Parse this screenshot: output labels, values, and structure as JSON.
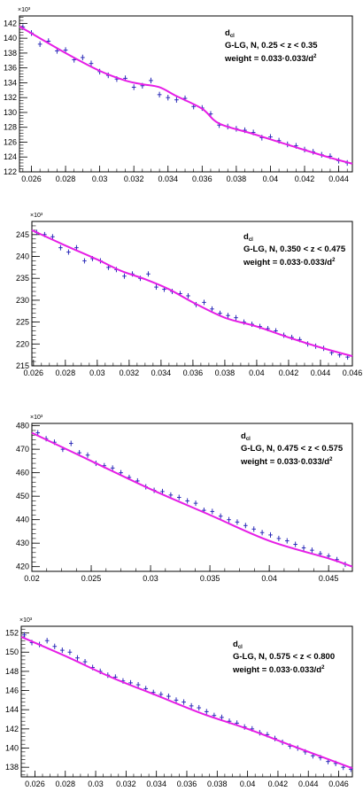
{
  "chart_data": [
    {
      "type": "line",
      "xlim": [
        0.0253,
        0.0448
      ],
      "ylim": [
        122,
        143
      ],
      "exponent_label": "×10³",
      "x_ticks": [
        0.026,
        0.028,
        0.03,
        0.032,
        0.034,
        0.036,
        0.038,
        0.04,
        0.042,
        0.044
      ],
      "x_tick_labels": [
        "0.026",
        "0.028",
        "0.03",
        "0.032",
        "0.034",
        "0.036",
        "0.038",
        "0.04",
        "0.042",
        "0.044"
      ],
      "y_ticks": [
        122,
        124,
        126,
        128,
        130,
        132,
        134,
        136,
        138,
        140,
        142
      ],
      "y_tick_labels": [
        "122",
        "124",
        "126",
        "128",
        "130",
        "132",
        "134",
        "136",
        "138",
        "140",
        "142"
      ],
      "legend": {
        "title": "d",
        "subscript": "cl",
        "line1": "G-LG, N, 0.25 < z < 0.35",
        "line2": "weight = 0.033·0.033/d",
        "superscript": "2"
      },
      "fit_curve": {
        "x": [
          0.0253,
          0.028,
          0.03,
          0.0315,
          0.0325,
          0.0335,
          0.0345,
          0.036,
          0.037,
          0.039,
          0.0415,
          0.0435,
          0.0448
        ],
        "y": [
          141.6,
          138.0,
          135.6,
          134.3,
          133.8,
          133.4,
          132.2,
          130.5,
          128.5,
          127.1,
          125.3,
          123.9,
          123.1
        ]
      },
      "points": {
        "x": [
          0.0255,
          0.026,
          0.0265,
          0.027,
          0.0275,
          0.028,
          0.0285,
          0.029,
          0.0295,
          0.03,
          0.0305,
          0.031,
          0.0315,
          0.032,
          0.0325,
          0.033,
          0.0335,
          0.034,
          0.0345,
          0.035,
          0.0355,
          0.036,
          0.0365,
          0.037,
          0.0375,
          0.038,
          0.0385,
          0.039,
          0.0395,
          0.04,
          0.0405,
          0.041,
          0.0415,
          0.042,
          0.0425,
          0.043,
          0.0435,
          0.044,
          0.0445
        ],
        "y": [
          141.5,
          140.7,
          139.2,
          139.6,
          138.3,
          138.4,
          137.1,
          137.4,
          136.6,
          135.5,
          135.0,
          134.5,
          134.6,
          133.4,
          133.6,
          134.3,
          132.4,
          132.0,
          131.7,
          131.9,
          130.8,
          130.6,
          129.8,
          128.3,
          128.1,
          127.8,
          127.6,
          127.3,
          126.6,
          126.7,
          126.2,
          125.7,
          125.5,
          125.0,
          124.7,
          124.3,
          124.1,
          123.5,
          123.2
        ]
      }
    },
    {
      "type": "line",
      "xlim": [
        0.0259,
        0.046
      ],
      "ylim": [
        215,
        248
      ],
      "exponent_label": "×10³",
      "x_ticks": [
        0.026,
        0.028,
        0.03,
        0.032,
        0.034,
        0.036,
        0.038,
        0.04,
        0.042,
        0.044,
        0.046
      ],
      "x_tick_labels": [
        "0.026",
        "0.028",
        "0.03",
        "0.032",
        "0.034",
        "0.036",
        "0.038",
        "0.04",
        "0.042",
        "0.044",
        "0.046"
      ],
      "y_ticks": [
        215,
        220,
        225,
        230,
        235,
        240,
        245
      ],
      "y_tick_labels": [
        "215",
        "220",
        "225",
        "230",
        "235",
        "240",
        "245"
      ],
      "legend": {
        "title": "d",
        "subscript": "cl",
        "line1": "G-LG, N, 0.350 < z < 0.475",
        "line2": "weight = 0.033·0.033/d",
        "superscript": "2"
      },
      "fit_curve": {
        "x": [
          0.0259,
          0.028,
          0.03,
          0.0315,
          0.033,
          0.0345,
          0.036,
          0.038,
          0.04,
          0.042,
          0.044,
          0.046
        ],
        "y": [
          246.0,
          242.5,
          239.3,
          236.7,
          234.8,
          232.5,
          229.5,
          226.0,
          224.0,
          221.5,
          219.2,
          217.2
        ]
      },
      "points": {
        "x": [
          0.0262,
          0.0267,
          0.0272,
          0.0277,
          0.0282,
          0.0287,
          0.0292,
          0.0297,
          0.0302,
          0.0307,
          0.0312,
          0.0317,
          0.0322,
          0.0327,
          0.0332,
          0.0337,
          0.0342,
          0.0347,
          0.0352,
          0.0357,
          0.0362,
          0.0367,
          0.0372,
          0.0377,
          0.0382,
          0.0387,
          0.0392,
          0.0397,
          0.0402,
          0.0407,
          0.0412,
          0.0417,
          0.0422,
          0.0427,
          0.0432,
          0.0437,
          0.0442,
          0.0447,
          0.0452,
          0.0457
        ],
        "y": [
          245.5,
          245.0,
          244.5,
          242.0,
          241.0,
          242.0,
          239.0,
          239.5,
          239.0,
          237.5,
          237.0,
          235.5,
          236.0,
          235.0,
          236.0,
          233.0,
          232.5,
          232.0,
          231.5,
          231.0,
          229.0,
          229.5,
          228.0,
          227.0,
          226.5,
          226.0,
          225.0,
          224.5,
          224.0,
          223.5,
          223.0,
          222.0,
          221.5,
          221.0,
          220.0,
          219.5,
          219.0,
          218.0,
          217.5,
          217.0
        ]
      }
    },
    {
      "type": "line",
      "xlim": [
        0.02,
        0.047
      ],
      "ylim": [
        418,
        481
      ],
      "exponent_label": "×10³",
      "x_ticks": [
        0.02,
        0.025,
        0.03,
        0.035,
        0.04,
        0.045
      ],
      "x_tick_labels": [
        "0.02",
        "0.025",
        "0.03",
        "0.035",
        "0.04",
        "0.045"
      ],
      "y_ticks": [
        420,
        430,
        440,
        450,
        460,
        470,
        480
      ],
      "y_tick_labels": [
        "420",
        "430",
        "440",
        "450",
        "460",
        "470",
        "480"
      ],
      "legend": {
        "title": "d",
        "subscript": "cl",
        "line1": "G-LG, N, 0.475 < z < 0.575",
        "line2": "weight = 0.033·0.033/d",
        "superscript": "2"
      },
      "fit_curve": {
        "x": [
          0.02,
          0.025,
          0.03,
          0.035,
          0.04,
          0.045,
          0.047
        ],
        "y": [
          477.0,
          465.0,
          453.0,
          442.0,
          431.0,
          423.5,
          420.0
        ]
      },
      "points": {
        "x": [
          0.0205,
          0.0212,
          0.0219,
          0.0226,
          0.0233,
          0.024,
          0.0247,
          0.0254,
          0.0261,
          0.0268,
          0.0275,
          0.0282,
          0.0289,
          0.0296,
          0.0303,
          0.031,
          0.0317,
          0.0324,
          0.0331,
          0.0338,
          0.0345,
          0.0352,
          0.0359,
          0.0366,
          0.0373,
          0.038,
          0.0387,
          0.0394,
          0.0401,
          0.0408,
          0.0415,
          0.0422,
          0.0429,
          0.0436,
          0.0443,
          0.045,
          0.0457,
          0.0464
        ],
        "y": [
          477.0,
          474.5,
          473.0,
          470.0,
          472.5,
          468.5,
          467.5,
          464.0,
          463.0,
          462.0,
          460.0,
          458.0,
          456.5,
          454.0,
          452.5,
          452.0,
          450.5,
          449.5,
          448.0,
          447.0,
          444.0,
          443.5,
          441.5,
          440.0,
          439.0,
          437.5,
          436.0,
          434.5,
          433.5,
          432.0,
          431.0,
          429.5,
          428.0,
          427.0,
          425.5,
          424.5,
          423.0,
          421.0
        ]
      }
    },
    {
      "type": "line",
      "xlim": [
        0.0251,
        0.0469
      ],
      "ylim": [
        137,
        152.7
      ],
      "exponent_label": "×10³",
      "x_ticks": [
        0.026,
        0.028,
        0.03,
        0.032,
        0.034,
        0.036,
        0.038,
        0.04,
        0.042,
        0.044,
        0.046
      ],
      "x_tick_labels": [
        "0.026",
        "0.028",
        "0.03",
        "0.032",
        "0.034",
        "0.036",
        "0.038",
        "0.04",
        "0.042",
        "0.044",
        "0.046"
      ],
      "y_ticks": [
        138,
        140,
        142,
        144,
        146,
        148,
        150,
        152
      ],
      "y_tick_labels": [
        "138",
        "140",
        "142",
        "144",
        "146",
        "148",
        "150",
        "152"
      ],
      "legend": {
        "title": "d",
        "subscript": "cl",
        "line1": "G-LG, N, 0.575 < z < 0.800",
        "line2": "weight = 0.033·0.033/d",
        "superscript": "2"
      },
      "fit_curve": {
        "x": [
          0.0251,
          0.028,
          0.031,
          0.034,
          0.037,
          0.04,
          0.043,
          0.0469
        ],
        "y": [
          151.6,
          149.6,
          147.4,
          145.5,
          143.6,
          142.0,
          140.2,
          137.9
        ]
      },
      "points": {
        "x": [
          0.0253,
          0.0258,
          0.0263,
          0.0268,
          0.0273,
          0.0278,
          0.0283,
          0.0288,
          0.0293,
          0.0298,
          0.0303,
          0.0308,
          0.0313,
          0.0318,
          0.0323,
          0.0328,
          0.0333,
          0.0338,
          0.0343,
          0.0348,
          0.0353,
          0.0358,
          0.0363,
          0.0368,
          0.0373,
          0.0378,
          0.0383,
          0.0388,
          0.0393,
          0.0398,
          0.0403,
          0.0408,
          0.0413,
          0.0418,
          0.0423,
          0.0428,
          0.0433,
          0.0438,
          0.0443,
          0.0448,
          0.0453,
          0.0458,
          0.0463,
          0.0468
        ],
        "y": [
          151.8,
          151.0,
          150.8,
          151.2,
          150.6,
          150.2,
          150.0,
          149.4,
          149.0,
          148.4,
          148.0,
          147.6,
          147.4,
          147.0,
          146.8,
          146.6,
          146.2,
          145.8,
          145.6,
          145.4,
          145.0,
          144.8,
          144.4,
          144.2,
          143.8,
          143.4,
          143.2,
          142.8,
          142.6,
          142.2,
          142.0,
          141.6,
          141.4,
          141.0,
          140.6,
          140.2,
          140.0,
          139.6,
          139.2,
          139.0,
          138.6,
          138.4,
          138.0,
          137.8
        ]
      }
    }
  ],
  "colors": {
    "fit": "#e61ee6",
    "points": "#2b2bb8",
    "frame": "#000000"
  }
}
